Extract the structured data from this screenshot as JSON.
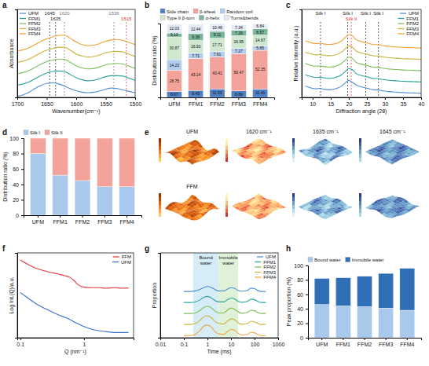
{
  "chart_data": [
    {
      "panel_label": "a",
      "type": "line",
      "x_label": "Wavenumber(cm⁻¹)",
      "y_label": "Absorbance",
      "x": [
        1700,
        1690,
        1680,
        1670,
        1660,
        1650,
        1640,
        1630,
        1620,
        1610,
        1600,
        1590,
        1580,
        1570,
        1560,
        1550,
        1540,
        1530,
        1520,
        1510,
        1500
      ],
      "xlim": [
        1700,
        1500
      ],
      "xticks": [
        1700,
        1650,
        1600,
        1550,
        1500
      ],
      "ylim": [
        0,
        8.5
      ],
      "tick_labels": "x",
      "legend": "top-left",
      "series": [
        {
          "name": "UFM",
          "color": "#4e8fd1",
          "values": [
            0.1,
            0.25,
            0.5,
            0.85,
            1.15,
            1.35,
            1.4,
            1.3,
            1.1,
            0.85,
            0.65,
            0.5,
            0.45,
            0.5,
            0.62,
            0.8,
            0.9,
            0.85,
            0.72,
            0.58,
            0.45
          ]
        },
        {
          "name": "FFM1",
          "color": "#2ba39a",
          "values": [
            1.2,
            1.3,
            1.5,
            1.8,
            2.1,
            2.35,
            2.5,
            2.55,
            2.5,
            2.2,
            1.9,
            1.7,
            1.6,
            1.65,
            1.8,
            2.0,
            2.1,
            2.1,
            2.05,
            1.85,
            1.65
          ]
        },
        {
          "name": "FFM2",
          "color": "#7fbf5a",
          "values": [
            2.3,
            2.4,
            2.6,
            2.9,
            3.2,
            3.45,
            3.6,
            3.7,
            3.68,
            3.4,
            3.05,
            2.85,
            2.75,
            2.8,
            2.95,
            3.15,
            3.25,
            3.28,
            3.2,
            3.0,
            2.8
          ]
        },
        {
          "name": "FFM3",
          "color": "#c9b43c",
          "values": [
            3.4,
            3.5,
            3.7,
            4.0,
            4.3,
            4.55,
            4.72,
            4.85,
            4.85,
            4.55,
            4.2,
            4.0,
            3.9,
            3.95,
            4.1,
            4.3,
            4.42,
            4.45,
            4.38,
            4.15,
            3.95
          ]
        },
        {
          "name": "FFM4",
          "color": "#f0a13a",
          "values": [
            4.5,
            4.6,
            4.8,
            5.1,
            5.4,
            5.65,
            5.85,
            6.0,
            6.02,
            5.7,
            5.35,
            5.1,
            5.0,
            5.05,
            5.2,
            5.42,
            5.55,
            5.6,
            5.5,
            5.3,
            5.1
          ]
        }
      ],
      "annotations": [
        {
          "x": 1620,
          "label": "1620",
          "color": "#777777"
        },
        {
          "x": 1536,
          "label": "1536",
          "color": "#777777"
        },
        {
          "x": 1515,
          "label": "1515",
          "color": "#e03030"
        },
        {
          "x": 1645,
          "label": "1645",
          "color": "#222222"
        },
        {
          "x": 1635,
          "label": "1635",
          "color": "#222222"
        }
      ]
    },
    {
      "panel_label": "b",
      "type": "bar",
      "stacked": true,
      "data_labels": true,
      "y_label": "Distribution ratio (%)",
      "categories": [
        "UFM",
        "FFM1",
        "FFM2",
        "FFM3",
        "FFM4"
      ],
      "ylim": [
        0,
        100
      ],
      "tick_labels": "x",
      "legend": "top",
      "series": [
        {
          "name": "Side chain",
          "color": "#4f7fc5",
          "values": [
            8.07,
            9.43,
            11.53,
            8.89,
            11.41
          ]
        },
        {
          "name": "β-sheet",
          "color": "#f4a39a",
          "values": [
            28.75,
            43.14,
            43.41,
            50.47,
            52.35
          ]
        },
        {
          "name": "Random coil",
          "color": "#b3cdee",
          "values": [
            14.23,
            7.71,
            7.61,
            7.27,
            5.85
          ]
        },
        {
          "name": "Type II β-turn",
          "color": "#cfe8cf",
          "values": [
            30.87,
            16.93,
            17.71,
            16.95,
            14.67
          ]
        },
        {
          "name": "α-helix",
          "color": "#79b59a",
          "values": [
            5.13,
            9.39,
            9.11,
            7.29,
            8.57
          ]
        },
        {
          "name": "Turns&bends",
          "color": "#e3ecf6",
          "values": [
            12.03,
            12.44,
            10.48,
            7.34,
            6.84
          ]
        }
      ]
    },
    {
      "panel_label": "c",
      "type": "line",
      "x_label": "Diffraction angle (2θ)",
      "y_label": "Relative intensity (a.u.)",
      "x": [
        8,
        9,
        10,
        11,
        12,
        13,
        14,
        15,
        16,
        17,
        18,
        19,
        20,
        21,
        22,
        23,
        24,
        25,
        26,
        27,
        28,
        29,
        30,
        31,
        32,
        33,
        34,
        35,
        36,
        37,
        38,
        39,
        40
      ],
      "xlim": [
        7,
        40
      ],
      "xticks": [
        10,
        15,
        20,
        25,
        30,
        35,
        40
      ],
      "ylim": [
        0,
        7
      ],
      "tick_labels": "x",
      "legend": "top-right",
      "series": [
        {
          "name": "UFM",
          "color": "#4e8fd1",
          "values": [
            0.9,
            0.8,
            0.72,
            0.68,
            0.72,
            0.66,
            0.62,
            0.62,
            0.66,
            0.75,
            0.9,
            1.15,
            1.35,
            1.2,
            1.0,
            0.88,
            0.8,
            0.74,
            0.66,
            0.6,
            0.6,
            0.54,
            0.5,
            0.46,
            0.44,
            0.42,
            0.4,
            0.38,
            0.37,
            0.36,
            0.35,
            0.34,
            0.33
          ]
        },
        {
          "name": "FFM1",
          "color": "#2ba39a",
          "values": [
            1.8,
            1.7,
            1.62,
            1.58,
            1.6,
            1.56,
            1.52,
            1.52,
            1.56,
            1.65,
            1.8,
            2.05,
            2.3,
            2.2,
            1.9,
            1.78,
            1.7,
            1.64,
            1.56,
            1.5,
            1.5,
            1.44,
            1.4,
            1.36,
            1.34,
            1.32,
            1.3,
            1.28,
            1.27,
            1.26,
            1.25,
            1.24,
            1.23
          ]
        },
        {
          "name": "FFM2",
          "color": "#7fbf5a",
          "values": [
            2.7,
            2.6,
            2.52,
            2.48,
            2.5,
            2.46,
            2.42,
            2.42,
            2.46,
            2.55,
            2.7,
            2.95,
            3.2,
            3.1,
            2.8,
            2.68,
            2.6,
            2.54,
            2.46,
            2.4,
            2.4,
            2.34,
            2.3,
            2.26,
            2.24,
            2.22,
            2.2,
            2.18,
            2.17,
            2.16,
            2.15,
            2.14,
            2.13
          ]
        },
        {
          "name": "FFM3",
          "color": "#c9b43c",
          "values": [
            3.6,
            3.5,
            3.42,
            3.38,
            3.4,
            3.36,
            3.32,
            3.32,
            3.36,
            3.45,
            3.6,
            3.85,
            4.1,
            4.0,
            3.7,
            3.58,
            3.5,
            3.44,
            3.36,
            3.3,
            3.3,
            3.24,
            3.2,
            3.16,
            3.14,
            3.12,
            3.1,
            3.08,
            3.07,
            3.06,
            3.05,
            3.04,
            3.03
          ]
        },
        {
          "name": "FFM4",
          "color": "#f0a13a",
          "values": [
            4.5,
            4.4,
            4.32,
            4.28,
            4.3,
            4.26,
            4.22,
            4.22,
            4.26,
            4.35,
            4.5,
            4.75,
            5.0,
            4.9,
            4.6,
            4.48,
            4.4,
            4.34,
            4.26,
            4.2,
            4.2,
            4.14,
            4.1,
            4.06,
            4.04,
            4.02,
            4.0,
            3.98,
            3.97,
            3.96,
            3.95,
            3.94,
            3.93
          ]
        }
      ],
      "annotations": [
        {
          "x": 12.2,
          "label": "Silk I",
          "color": "#222222"
        },
        {
          "x": 19.7,
          "label": "Silk I",
          "color": "#222222"
        },
        {
          "x": 20.7,
          "label": "Silk II",
          "color": "#e03030"
        },
        {
          "x": 24.7,
          "label": "Silk I",
          "color": "#222222"
        },
        {
          "x": 28.2,
          "label": "Silk I",
          "color": "#222222"
        }
      ]
    },
    {
      "panel_label": "d",
      "type": "bar",
      "stacked": true,
      "y_label": "Distribution ratio (%)",
      "categories": [
        "UFM",
        "FFM1",
        "FFM2",
        "FFM3",
        "FFM4"
      ],
      "ylim": [
        0,
        100
      ],
      "yticks": [
        0,
        20,
        40,
        60,
        80,
        100
      ],
      "legend": "top",
      "series": [
        {
          "name": "Silk I",
          "color": "#a9c9ec",
          "values": [
            80,
            52,
            45,
            37,
            37
          ]
        },
        {
          "name": "Silk II",
          "color": "#f4a39a",
          "values": [
            20,
            48,
            55,
            63,
            63
          ]
        }
      ]
    },
    {
      "panel_label": "e",
      "type": "image",
      "row_labels": [
        "UFM",
        "FFM"
      ],
      "column_labels": [
        "1620 cm⁻¹",
        "1635 cm⁻¹",
        "1645 cm⁻¹"
      ]
    },
    {
      "panel_label": "f",
      "type": "line",
      "log": true,
      "x_label": "Q (nm⁻¹)",
      "y_label": "Log Int.(Q)/a.u.",
      "x": [
        0.1,
        0.13,
        0.17,
        0.22,
        0.3,
        0.4,
        0.5,
        0.6,
        0.7,
        0.8,
        1,
        1.3,
        1.7,
        2.2,
        3,
        4,
        5
      ],
      "xlim": [
        0.09,
        6
      ],
      "xticks": [
        0.1,
        1
      ],
      "ylim": [
        0.003,
        12
      ],
      "tick_labels": "x",
      "legend": "top-right",
      "series": [
        {
          "name": "FFM",
          "color": "#e83a3a",
          "values": [
            6,
            4,
            2.8,
            2.2,
            1.8,
            1.5,
            1.3,
            1.1,
            0.8,
            0.55,
            0.42,
            0.4,
            0.4,
            0.38,
            0.4,
            0.38,
            0.39
          ]
        },
        {
          "name": "UFM",
          "color": "#3a6fd8",
          "values": [
            0.25,
            0.15,
            0.09,
            0.06,
            0.04,
            0.028,
            0.022,
            0.018,
            0.014,
            0.012,
            0.009,
            0.007,
            0.006,
            0.0055,
            0.005,
            0.005,
            0.005
          ]
        }
      ]
    },
    {
      "panel_label": "g",
      "type": "line",
      "log": "x",
      "x_label": "Time (ms)",
      "y_label": "Proportion",
      "x": [
        0.1,
        0.2,
        0.3,
        0.5,
        0.7,
        1,
        1.5,
        2,
        3,
        5,
        7,
        10,
        15,
        20,
        30,
        50,
        70,
        100,
        150,
        200,
        300
      ],
      "xlim": [
        0.01,
        1000
      ],
      "xticks": [
        0.01,
        0.1,
        1,
        10,
        100,
        1000
      ],
      "ylim": [
        -0.2,
        7.5
      ],
      "tick_labels": "x",
      "legend": "top-right",
      "bands": [
        {
          "label": "Bound water",
          "range": [
            0.25,
            3
          ],
          "color": "#d6ecf7"
        },
        {
          "label": "Immobile water",
          "range": [
            3,
            20
          ],
          "color": "#dff2d8"
        }
      ],
      "series": [
        {
          "name": "UFM",
          "color": "#4e8fd1",
          "values": [
            4,
            4,
            4.05,
            4.2,
            4.35,
            4.45,
            4.35,
            4.2,
            4.05,
            4.05,
            4.2,
            4.35,
            4.25,
            4.1,
            4.02,
            4.1,
            4.3,
            4.25,
            4.05,
            4,
            4
          ]
        },
        {
          "name": "FFM1",
          "color": "#2ba39a",
          "values": [
            3,
            3,
            3.05,
            3.25,
            3.45,
            3.55,
            3.4,
            3.2,
            3.05,
            3.05,
            3.25,
            3.4,
            3.3,
            3.1,
            3.02,
            3.1,
            3.3,
            3.25,
            3.05,
            3,
            3
          ]
        },
        {
          "name": "FFM2",
          "color": "#7fbf5a",
          "values": [
            2,
            2,
            2.05,
            2.3,
            2.55,
            2.65,
            2.5,
            2.25,
            2.05,
            2.05,
            2.3,
            2.5,
            2.35,
            2.15,
            2.02,
            2.1,
            2.3,
            2.25,
            2.05,
            2,
            2
          ]
        },
        {
          "name": "FFM3",
          "color": "#c9b43c",
          "values": [
            1,
            1,
            1.1,
            1.4,
            1.7,
            1.8,
            1.6,
            1.3,
            1.1,
            1.05,
            1.3,
            1.5,
            1.4,
            1.15,
            1.02,
            1.1,
            1.3,
            1.25,
            1.05,
            1,
            1
          ]
        },
        {
          "name": "FFM4",
          "color": "#f0a13a",
          "values": [
            0,
            0,
            0.1,
            0.5,
            0.85,
            0.95,
            0.75,
            0.4,
            0.15,
            0.1,
            0.35,
            0.55,
            0.45,
            0.2,
            0.05,
            0.1,
            0.3,
            0.25,
            0.05,
            0,
            0
          ]
        }
      ]
    },
    {
      "panel_label": "h",
      "type": "bar",
      "stacked": true,
      "y_label": "Peak proportion (%)",
      "categories": [
        "UFM",
        "FFM1",
        "FFM2",
        "FFM3",
        "FFM4"
      ],
      "ylim": [
        0,
        100
      ],
      "yticks": [
        0,
        20,
        40,
        60,
        80,
        100
      ],
      "legend": "top",
      "series": [
        {
          "name": "Bound water",
          "color": "#a9c9ec",
          "values": [
            46,
            44,
            43,
            41,
            38
          ]
        },
        {
          "name": "Immobile water",
          "color": "#2f6fb5",
          "values": [
            36,
            39,
            42,
            48,
            58
          ]
        }
      ]
    }
  ]
}
